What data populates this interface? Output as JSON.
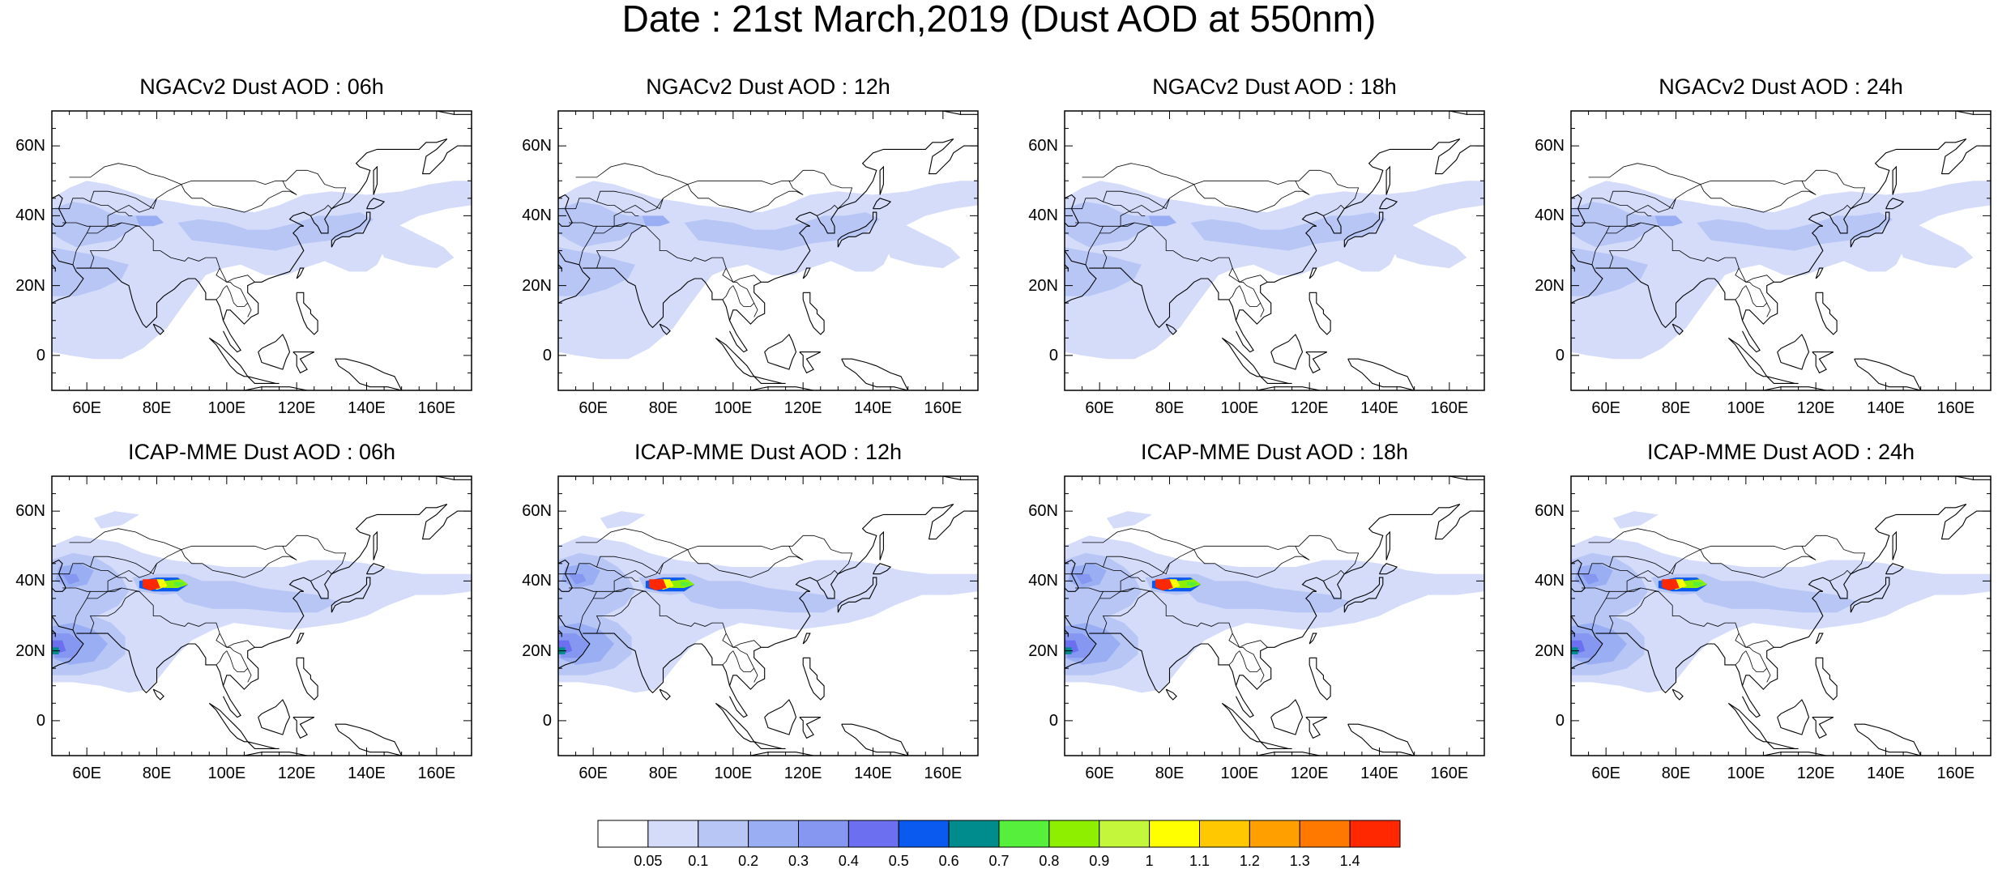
{
  "title": "Date : 21st March,2019 (Dust AOD at 550nm)",
  "panels": [
    {
      "title": "NGACv2 Dust AOD : 06h",
      "model": "NGACv2",
      "hour": "06h"
    },
    {
      "title": "NGACv2 Dust AOD : 12h",
      "model": "NGACv2",
      "hour": "12h"
    },
    {
      "title": "NGACv2 Dust AOD : 18h",
      "model": "NGACv2",
      "hour": "18h"
    },
    {
      "title": "NGACv2 Dust AOD : 24h",
      "model": "NGACv2",
      "hour": "24h"
    },
    {
      "title": "ICAP-MME Dust AOD : 06h",
      "model": "ICAP-MME",
      "hour": "06h"
    },
    {
      "title": "ICAP-MME Dust AOD : 12h",
      "model": "ICAP-MME",
      "hour": "12h"
    },
    {
      "title": "ICAP-MME Dust AOD : 18h",
      "model": "ICAP-MME",
      "hour": "18h"
    },
    {
      "title": "ICAP-MME Dust AOD : 24h",
      "model": "ICAP-MME",
      "hour": "24h"
    }
  ],
  "axes": {
    "lat_labels": [
      "60N",
      "40N",
      "20N",
      "0"
    ],
    "lat_values": [
      60,
      40,
      20,
      0
    ],
    "lon_labels": [
      "60E",
      "80E",
      "100E",
      "120E",
      "140E",
      "160E"
    ],
    "lon_values": [
      60,
      80,
      100,
      120,
      140,
      160
    ],
    "lon_range": [
      50,
      170
    ],
    "lat_range": [
      -10,
      70
    ]
  },
  "colorbar": {
    "labels": [
      "0.05",
      "0.1",
      "0.2",
      "0.3",
      "0.4",
      "0.5",
      "0.6",
      "0.7",
      "0.8",
      "0.9",
      "1",
      "1.1",
      "1.2",
      "1.3",
      "1.4"
    ],
    "colors": [
      "#ffffff",
      "#d4dcfa",
      "#b8c6f6",
      "#9aaff3",
      "#8597f0",
      "#6b6ff0",
      "#0a5af0",
      "#008c8c",
      "#56f03c",
      "#8ef000",
      "#c4f73c",
      "#ffff00",
      "#ffc800",
      "#ffa000",
      "#ff7800",
      "#ff2800"
    ]
  }
}
